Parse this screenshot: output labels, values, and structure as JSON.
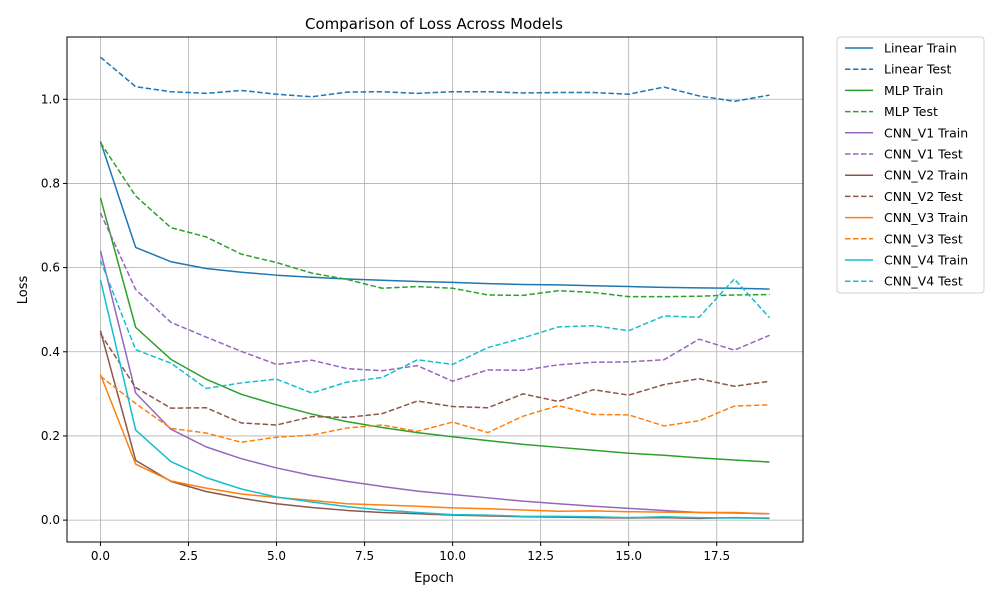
{
  "chart_data": {
    "type": "line",
    "title": "Comparison of Loss Across Models",
    "xlabel": "Epoch",
    "ylabel": "Loss",
    "xlim": [
      -0.95,
      19.95
    ],
    "ylim": [
      -0.052,
      1.148
    ],
    "x_ticks": [
      0.0,
      2.5,
      5.0,
      7.5,
      10.0,
      12.5,
      15.0,
      17.5
    ],
    "x_tick_labels": [
      "0.0",
      "2.5",
      "5.0",
      "7.5",
      "10.0",
      "12.5",
      "15.0",
      "17.5"
    ],
    "y_ticks": [
      0.0,
      0.2,
      0.4,
      0.6,
      0.8,
      1.0
    ],
    "y_tick_labels": [
      "0.0",
      "0.2",
      "0.4",
      "0.6",
      "0.8",
      "1.0"
    ],
    "grid": true,
    "legend_position": "outside top-right",
    "x": [
      0,
      1,
      2,
      3,
      4,
      5,
      6,
      7,
      8,
      9,
      10,
      11,
      12,
      13,
      14,
      15,
      16,
      17,
      18,
      19
    ],
    "series": [
      {
        "name": "Linear Train",
        "color": "#1f77b4",
        "style": "solid",
        "values": [
          0.9,
          0.648,
          0.614,
          0.598,
          0.589,
          0.582,
          0.577,
          0.573,
          0.57,
          0.567,
          0.565,
          0.562,
          0.56,
          0.559,
          0.557,
          0.555,
          0.553,
          0.552,
          0.551,
          0.549
        ]
      },
      {
        "name": "Linear Test",
        "color": "#1f77b4",
        "style": "dashed",
        "values": [
          1.1,
          1.03,
          1.018,
          1.014,
          1.021,
          1.012,
          1.006,
          1.017,
          1.018,
          1.014,
          1.018,
          1.018,
          1.015,
          1.016,
          1.016,
          1.012,
          1.029,
          1.008,
          0.995,
          1.01
        ]
      },
      {
        "name": "MLP Train",
        "color": "#2ca02c",
        "style": "solid",
        "values": [
          0.766,
          0.458,
          0.382,
          0.335,
          0.299,
          0.274,
          0.252,
          0.234,
          0.22,
          0.208,
          0.198,
          0.189,
          0.18,
          0.173,
          0.166,
          0.159,
          0.154,
          0.148,
          0.143,
          0.138
        ]
      },
      {
        "name": "MLP Test",
        "color": "#2ca02c",
        "style": "dashed",
        "values": [
          0.897,
          0.77,
          0.695,
          0.673,
          0.632,
          0.612,
          0.587,
          0.572,
          0.551,
          0.555,
          0.551,
          0.535,
          0.534,
          0.545,
          0.541,
          0.531,
          0.531,
          0.532,
          0.535,
          0.536
        ]
      },
      {
        "name": "CNN_V1 Train",
        "color": "#9467bd",
        "style": "solid",
        "values": [
          0.64,
          0.302,
          0.216,
          0.174,
          0.146,
          0.124,
          0.106,
          0.092,
          0.08,
          0.069,
          0.061,
          0.053,
          0.045,
          0.039,
          0.033,
          0.028,
          0.023,
          0.018,
          0.017,
          0.015
        ]
      },
      {
        "name": "CNN_V1 Test",
        "color": "#9467bd",
        "style": "dashed",
        "values": [
          0.73,
          0.548,
          0.47,
          0.435,
          0.401,
          0.37,
          0.38,
          0.36,
          0.355,
          0.367,
          0.33,
          0.357,
          0.356,
          0.369,
          0.375,
          0.376,
          0.381,
          0.43,
          0.404,
          0.439
        ]
      },
      {
        "name": "CNN_V2 Train",
        "color": "#8c564b",
        "style": "solid",
        "values": [
          0.45,
          0.142,
          0.092,
          0.068,
          0.052,
          0.039,
          0.03,
          0.023,
          0.018,
          0.015,
          0.012,
          0.01,
          0.008,
          0.007,
          0.006,
          0.005,
          0.006,
          0.004,
          0.006,
          0.004
        ]
      },
      {
        "name": "CNN_V2 Test",
        "color": "#8c564b",
        "style": "dashed",
        "values": [
          0.443,
          0.315,
          0.266,
          0.267,
          0.231,
          0.226,
          0.246,
          0.244,
          0.253,
          0.283,
          0.27,
          0.267,
          0.3,
          0.282,
          0.31,
          0.297,
          0.322,
          0.336,
          0.318,
          0.33
        ]
      },
      {
        "name": "CNN_V3 Train",
        "color": "#ff7f0e",
        "style": "solid",
        "values": [
          0.346,
          0.133,
          0.093,
          0.076,
          0.062,
          0.054,
          0.047,
          0.039,
          0.036,
          0.033,
          0.029,
          0.027,
          0.024,
          0.021,
          0.022,
          0.02,
          0.019,
          0.018,
          0.018,
          0.015
        ]
      },
      {
        "name": "CNN_V3 Test",
        "color": "#ff7f0e",
        "style": "dashed",
        "values": [
          0.342,
          0.277,
          0.218,
          0.207,
          0.185,
          0.197,
          0.202,
          0.219,
          0.226,
          0.211,
          0.233,
          0.208,
          0.247,
          0.272,
          0.251,
          0.25,
          0.224,
          0.236,
          0.271,
          0.274
        ]
      },
      {
        "name": "CNN_V4 Train",
        "color": "#17becf",
        "style": "solid",
        "values": [
          0.571,
          0.214,
          0.139,
          0.101,
          0.074,
          0.055,
          0.043,
          0.032,
          0.024,
          0.018,
          0.013,
          0.012,
          0.009,
          0.009,
          0.008,
          0.006,
          0.008,
          0.006,
          0.005,
          0.005
        ]
      },
      {
        "name": "CNN_V4 Test",
        "color": "#17becf",
        "style": "dashed",
        "values": [
          0.617,
          0.405,
          0.373,
          0.313,
          0.326,
          0.335,
          0.302,
          0.328,
          0.339,
          0.381,
          0.37,
          0.41,
          0.433,
          0.459,
          0.462,
          0.45,
          0.485,
          0.482,
          0.573,
          0.481
        ]
      }
    ]
  }
}
